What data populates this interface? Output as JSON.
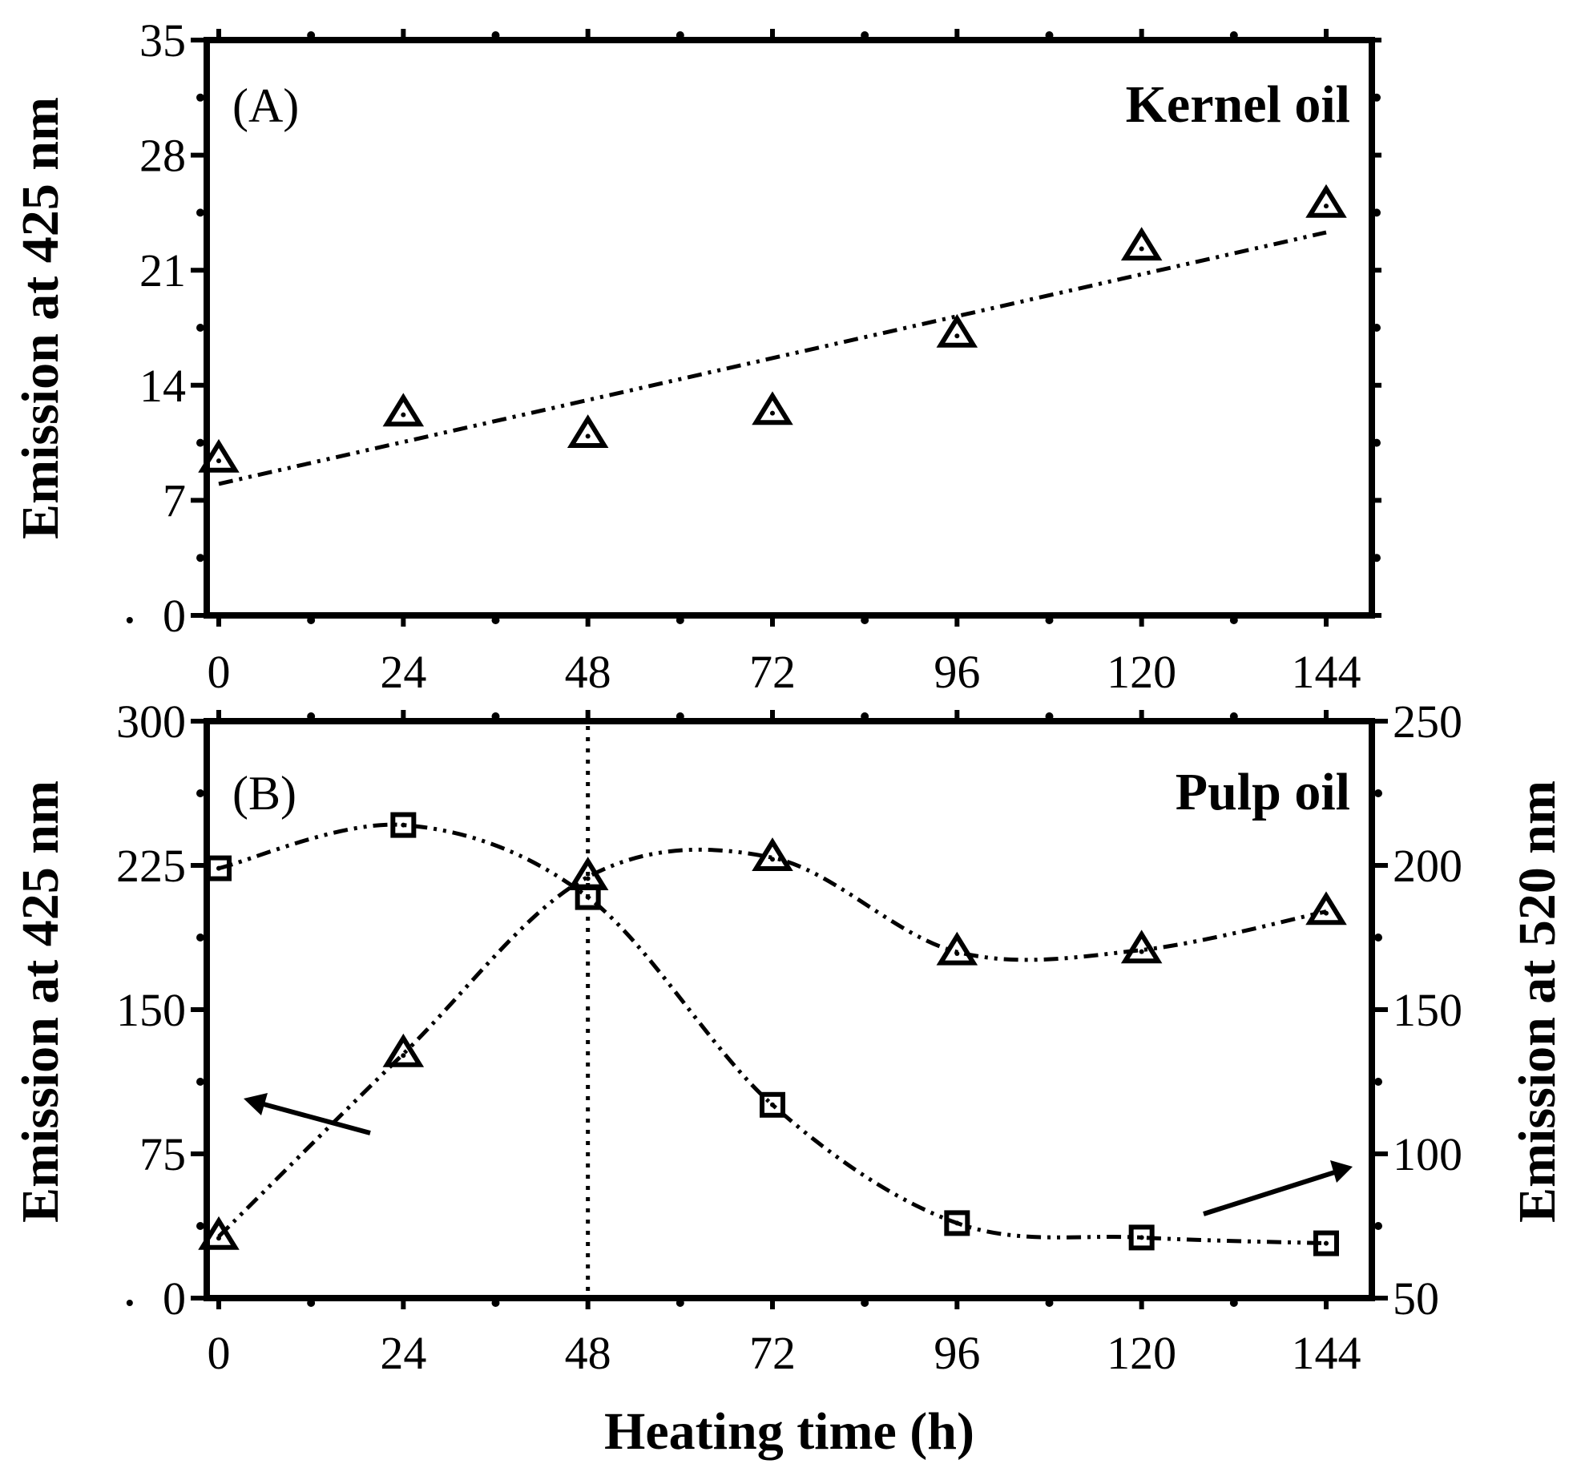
{
  "chart_data": [
    {
      "type": "scatter",
      "panel": "(A)",
      "title": "Kernel oil",
      "xlabel": "",
      "ylabel": "Emission at 425 nm",
      "x_ticks": [
        "0",
        "24",
        "48",
        "72",
        "96",
        "120",
        "144"
      ],
      "y_ticks": [
        "0",
        "7",
        "14",
        "21",
        "28",
        "35"
      ],
      "xlim": [
        -9.5,
        150
      ],
      "ylim": [
        0,
        35
      ],
      "series": [
        {
          "name": "Emission at 425 nm",
          "marker": "triangle",
          "x": [
            0,
            24,
            48,
            72,
            96,
            120,
            144
          ],
          "values": [
            9.5,
            12.3,
            11.0,
            12.4,
            17.1,
            22.4,
            25.0
          ]
        }
      ],
      "fit": {
        "style": "dash-dot",
        "x": [
          0,
          144
        ],
        "values": [
          8.0,
          23.3
        ]
      }
    },
    {
      "type": "line",
      "panel": "(B)",
      "title": "Pulp oil",
      "xlabel": "Heating time (h)",
      "ylabel": "Emission at 425 nm",
      "y2label": "Emission at 520 nm",
      "x_ticks": [
        "0",
        "24",
        "48",
        "72",
        "96",
        "120",
        "144"
      ],
      "y_ticks": [
        "0",
        "75",
        "150",
        "225",
        "300"
      ],
      "y2_ticks": [
        "50",
        "100",
        "150",
        "200",
        "250"
      ],
      "xlim": [
        -9.5,
        150
      ],
      "ylim": [
        0,
        300
      ],
      "y2lim": [
        50,
        250
      ],
      "reference_line_x": 48,
      "series": [
        {
          "name": "Emission at 425 nm",
          "axis": "left",
          "marker": "triangle",
          "x": [
            0,
            24,
            48,
            72,
            96,
            120,
            144
          ],
          "values": [
            32,
            127,
            219,
            229,
            180,
            181,
            201
          ]
        },
        {
          "name": "Emission at 520 nm",
          "axis": "right",
          "marker": "square",
          "x": [
            0,
            24,
            48,
            72,
            96,
            120,
            144
          ],
          "values": [
            199,
            214,
            189,
            117,
            76,
            71,
            69
          ]
        }
      ]
    }
  ]
}
